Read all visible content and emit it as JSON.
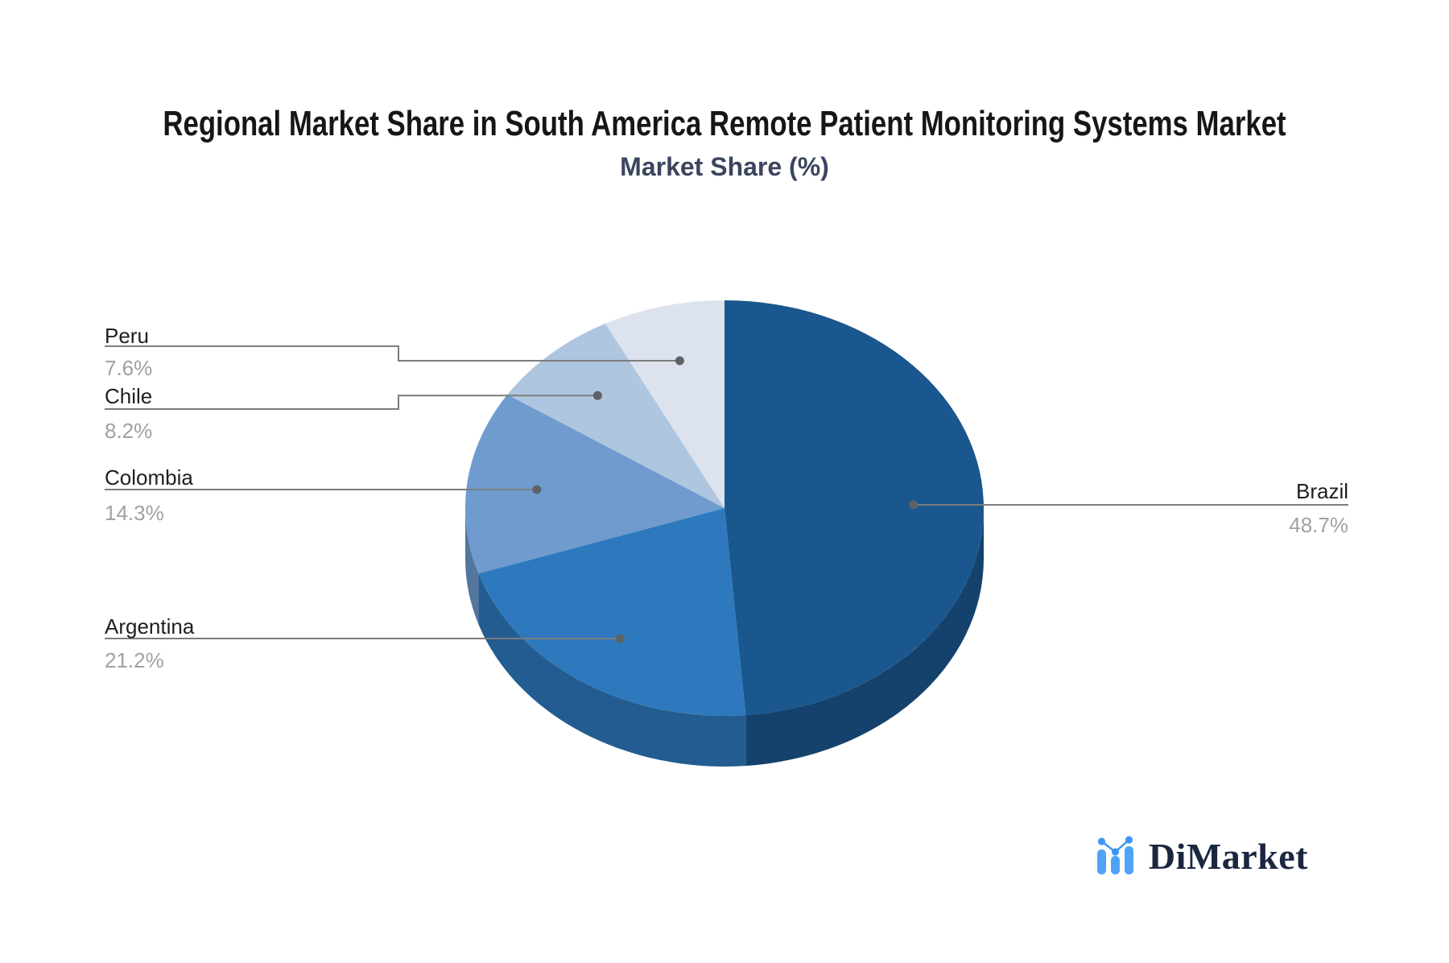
{
  "header": {
    "title": "Regional Market Share in South America Remote Patient Monitoring Systems Market",
    "subtitle": "Market Share (%)"
  },
  "chart_data": {
    "type": "pie",
    "style": "3d",
    "title": "Regional Market Share in South America Remote Patient Monitoring Systems Market",
    "subtitle": "Market Share (%)",
    "unit": "%",
    "direction": "clockwise",
    "start_angle_deg": 0,
    "legend": "none",
    "slices": [
      {
        "label": "Brazil",
        "value": 48.7,
        "pct": "48.7%",
        "color": "#1A578E"
      },
      {
        "label": "Argentina",
        "value": 21.2,
        "pct": "21.2%",
        "color": "#2E79BD"
      },
      {
        "label": "Colombia",
        "value": 14.3,
        "pct": "14.3%",
        "color": "#6F9BCF"
      },
      {
        "label": "Chile",
        "value": 8.2,
        "pct": "8.2%",
        "color": "#AFC6E0"
      },
      {
        "label": "Peru",
        "value": 7.6,
        "pct": "7.6%",
        "color": "#DDE3EE"
      }
    ],
    "colors": {
      "leader_line": "#7d7d7d",
      "connector_dot": "#5e6266",
      "label_text": "#1f1f1f",
      "value_text": "#a1a1a1",
      "title_text": "#161616",
      "subtitle_text": "#3b455e"
    }
  },
  "branding": {
    "name": "DiMarket",
    "icon": "bar-line-chart-icon",
    "text_color": "#1b2740",
    "icon_bar_color": "#4FA3F7",
    "icon_accent_color": "#3E97F5"
  }
}
